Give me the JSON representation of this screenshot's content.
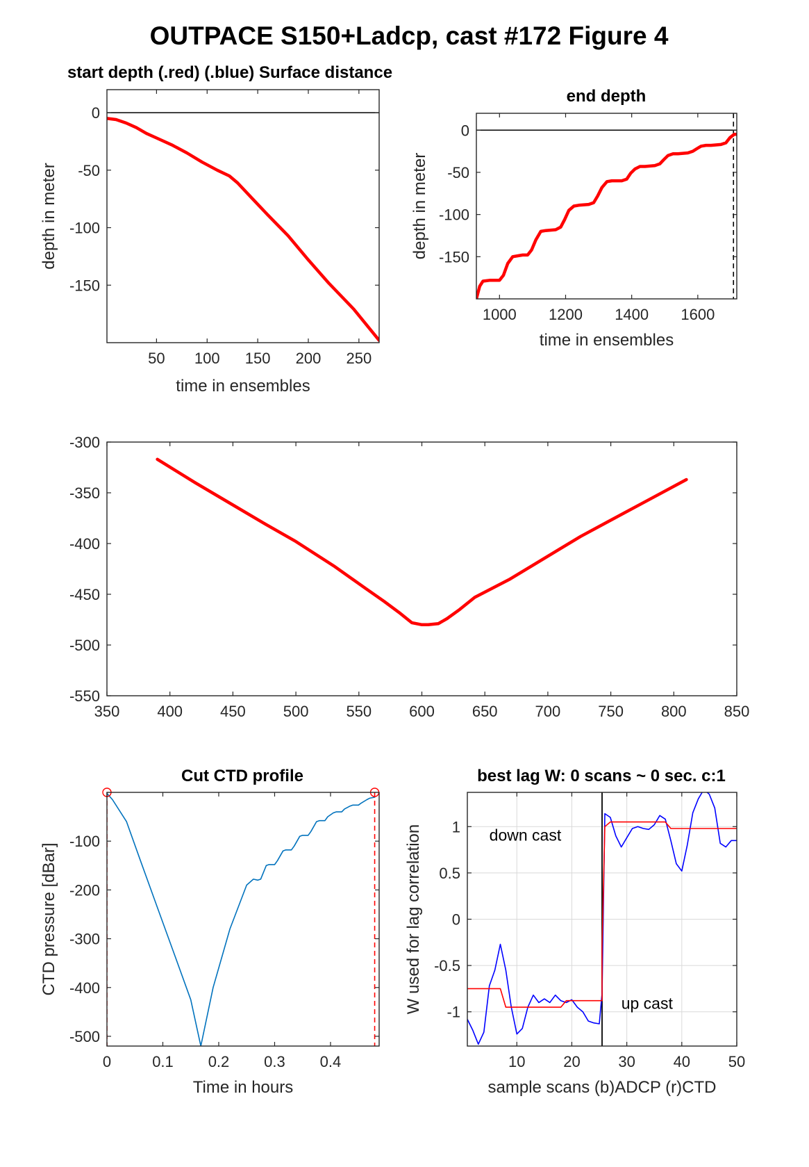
{
  "figure": {
    "title": "OUTPACE S150+Ladcp, cast #172    Figure 4"
  },
  "chart_data": [
    {
      "id": "start_depth",
      "type": "line",
      "title": "start depth (.red) (.blue) Surface distance",
      "xlabel": "time in ensembles",
      "ylabel": "depth in meter",
      "xlim": [
        1,
        270
      ],
      "ylim": [
        -200,
        20
      ],
      "xticks": [
        50,
        100,
        150,
        200,
        250
      ],
      "yticks": [
        0,
        -50,
        -100,
        -150
      ],
      "hlines": [
        0
      ],
      "series": [
        {
          "color": "#ff0000",
          "x": [
            1,
            10,
            20,
            30,
            40,
            50,
            65,
            80,
            95,
            110,
            122,
            130,
            145,
            160,
            180,
            200,
            220,
            245,
            270
          ],
          "y": [
            -5,
            -6,
            -9,
            -13,
            -18,
            -22,
            -28,
            -35,
            -43,
            -50,
            -55,
            -61,
            -75,
            -89,
            -107,
            -128,
            -148,
            -171,
            -198
          ]
        }
      ]
    },
    {
      "id": "end_depth",
      "type": "line",
      "title": "end depth",
      "xlabel": "time in ensembles",
      "ylabel": "depth in meter",
      "xlim": [
        930,
        1718
      ],
      "ylim": [
        -200,
        20
      ],
      "xticks": [
        1000,
        1200,
        1400,
        1600
      ],
      "yticks": [
        0,
        -50,
        -100,
        -150
      ],
      "hlines": [
        0
      ],
      "vlines_dashed": [
        1708
      ],
      "series": [
        {
          "color": "#ff0000",
          "x": [
            930,
            940,
            950,
            970,
            990,
            1000,
            1012,
            1025,
            1040,
            1070,
            1085,
            1097,
            1110,
            1125,
            1140,
            1170,
            1185,
            1197,
            1210,
            1225,
            1240,
            1270,
            1285,
            1297,
            1310,
            1325,
            1340,
            1370,
            1385,
            1397,
            1410,
            1425,
            1440,
            1470,
            1485,
            1497,
            1510,
            1525,
            1540,
            1570,
            1585,
            1597,
            1610,
            1625,
            1640,
            1670,
            1685,
            1697,
            1710,
            1718
          ],
          "y": [
            -200,
            -185,
            -179,
            -178,
            -178,
            -178,
            -172,
            -158,
            -150,
            -148,
            -148,
            -142,
            -130,
            -120,
            -119,
            -118,
            -115,
            -106,
            -95,
            -90,
            -89,
            -88,
            -86,
            -78,
            -68,
            -61,
            -60,
            -60,
            -58,
            -51,
            -46,
            -43,
            -43,
            -42,
            -40,
            -35,
            -30,
            -28,
            -28,
            -27,
            -25,
            -22,
            -19,
            -18,
            -18,
            -17,
            -15,
            -9,
            -5,
            -5
          ]
        }
      ]
    },
    {
      "id": "middle_depth",
      "type": "line",
      "title": "",
      "xlabel": "",
      "ylabel": "",
      "xlim": [
        350,
        850
      ],
      "ylim": [
        -550,
        -300
      ],
      "xticks": [
        350,
        400,
        450,
        500,
        550,
        600,
        650,
        700,
        750,
        800,
        850
      ],
      "yticks": [
        -300,
        -350,
        -400,
        -450,
        -500,
        -550
      ],
      "series": [
        {
          "color": "#ff0000",
          "x": [
            390,
            420,
            450,
            476,
            500,
            530,
            555,
            570,
            582,
            592,
            600,
            605,
            613,
            620,
            630,
            642,
            656,
            670,
            690,
            710,
            726,
            750,
            780,
            810
          ],
          "y": [
            -317,
            -340,
            -362,
            -381,
            -398,
            -422,
            -444,
            -457,
            -468,
            -478,
            -480,
            -480,
            -479,
            -474,
            -465,
            -453,
            -444,
            -435,
            -420,
            -405,
            -393,
            -377,
            -357,
            -337
          ]
        }
      ]
    },
    {
      "id": "cut_ctd",
      "type": "line",
      "title": "Cut CTD profile",
      "xlabel": "Time in hours",
      "ylabel": "CTD pressure [dBar]",
      "xlim": [
        0,
        0.487
      ],
      "ylim": [
        -520,
        0
      ],
      "xticks": [
        0,
        0.1,
        0.2,
        0.3,
        0.4
      ],
      "xticklabels": [
        "0",
        "0.1",
        "0.2",
        "0.3",
        "0.4"
      ],
      "yticks": [
        -100,
        -200,
        -300,
        -400,
        -500
      ],
      "vlines_dashed": [
        0,
        0.479
      ],
      "markers": [
        {
          "x": 0,
          "y": 0,
          "color": "#ff0000"
        },
        {
          "x": 0.479,
          "y": 0,
          "color": "#ff0000"
        }
      ],
      "series": [
        {
          "color": "#0072bd",
          "x": [
            0,
            0.01,
            0.035,
            0.06,
            0.09,
            0.12,
            0.15,
            0.168,
            0.19,
            0.22,
            0.25,
            0.262,
            0.27,
            0.275,
            0.285,
            0.29,
            0.3,
            0.305,
            0.315,
            0.32,
            0.33,
            0.335,
            0.345,
            0.35,
            0.36,
            0.365,
            0.375,
            0.38,
            0.39,
            0.395,
            0.405,
            0.41,
            0.42,
            0.425,
            0.435,
            0.44,
            0.45,
            0.455,
            0.465,
            0.47,
            0.479
          ],
          "y": [
            -2,
            -15,
            -60,
            -140,
            -235,
            -330,
            -425,
            -520,
            -400,
            -280,
            -190,
            -178,
            -180,
            -178,
            -150,
            -148,
            -148,
            -140,
            -120,
            -118,
            -118,
            -110,
            -90,
            -88,
            -88,
            -80,
            -60,
            -58,
            -58,
            -50,
            -42,
            -40,
            -40,
            -34,
            -28,
            -26,
            -26,
            -22,
            -15,
            -12,
            -10
          ]
        }
      ]
    },
    {
      "id": "best_lag",
      "type": "line",
      "title": "best lag W: 0 scans ~ 0 sec.  c:1",
      "xlabel": "sample scans (b)ADCP (r)CTD",
      "ylabel": "W used for lag correlation",
      "xlim": [
        1,
        50
      ],
      "ylim": [
        -1.37,
        1.37
      ],
      "xticks": [
        10,
        20,
        30,
        40,
        50
      ],
      "yticks": [
        1,
        0.5,
        0,
        -0.5,
        -1
      ],
      "yticklabels": [
        "1",
        "0.5",
        "0",
        "-0.5",
        "-1"
      ],
      "grid": true,
      "vlines_solid": [
        25.5
      ],
      "annotations": [
        {
          "text": "down cast",
          "x": 5,
          "y": 0.85
        },
        {
          "text": "up cast",
          "x": 29,
          "y": -0.97
        }
      ],
      "series": [
        {
          "name": "ADCP",
          "color": "#0000ff",
          "x": [
            1,
            2,
            3,
            4,
            5,
            6,
            7,
            8,
            9,
            10,
            11,
            12,
            13,
            14,
            15,
            16,
            17,
            18,
            19,
            20,
            21,
            22,
            23,
            24,
            25,
            25.5,
            26,
            27,
            28,
            29,
            30,
            31,
            32,
            33,
            34,
            35,
            36,
            37,
            38,
            39,
            40,
            41,
            42,
            43,
            44,
            45,
            46,
            47,
            48,
            49,
            50
          ],
          "y": [
            -1.08,
            -1.2,
            -1.35,
            -1.22,
            -0.72,
            -0.55,
            -0.27,
            -0.55,
            -0.95,
            -1.24,
            -1.18,
            -0.95,
            -0.82,
            -0.9,
            -0.86,
            -0.9,
            -0.82,
            -0.88,
            -0.9,
            -0.87,
            -0.95,
            -1.0,
            -1.1,
            -1.12,
            -1.13,
            -0.8,
            1.14,
            1.1,
            0.9,
            0.78,
            0.88,
            0.98,
            1.0,
            0.98,
            0.97,
            1.02,
            1.12,
            1.08,
            0.85,
            0.6,
            0.52,
            0.8,
            1.15,
            1.3,
            1.4,
            1.35,
            1.2,
            0.82,
            0.78,
            0.85,
            0.85
          ]
        },
        {
          "name": "CTD",
          "color": "#ff0000",
          "x": [
            1,
            7,
            8,
            18,
            19,
            25.5,
            25.5,
            26,
            27,
            37,
            38,
            50
          ],
          "y": [
            -0.75,
            -0.75,
            -0.95,
            -0.95,
            -0.88,
            -0.88,
            -0.3,
            1.0,
            1.05,
            1.05,
            0.98,
            0.98
          ]
        }
      ]
    }
  ]
}
